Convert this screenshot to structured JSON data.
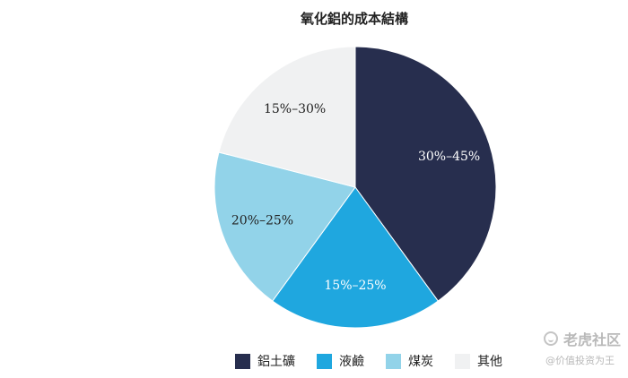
{
  "chart_data": {
    "type": "pie",
    "title": "氧化鋁的成本結構",
    "slices": [
      {
        "name": "鋁土礦",
        "label": "30%–45%",
        "share": 0.4,
        "color": "#272e4e",
        "label_color": "#ffffff"
      },
      {
        "name": "液鹼",
        "label": "15%–25%",
        "share": 0.2,
        "color": "#1fa7df",
        "label_color": "#ffffff"
      },
      {
        "name": "煤炭",
        "label": "20%–25%",
        "share": 0.19,
        "color": "#92d3e9",
        "label_color": "#222222"
      },
      {
        "name": "其他",
        "label": "15%–30%",
        "share": 0.21,
        "color": "#f0f1f2",
        "label_color": "#222222"
      }
    ],
    "start_angle": "12 o'clock",
    "direction": "clockwise",
    "legend_position": "bottom"
  },
  "watermark": {
    "brand": "老虎社区",
    "handle": "@价值投资为王",
    "icon": "tiger-icon"
  }
}
